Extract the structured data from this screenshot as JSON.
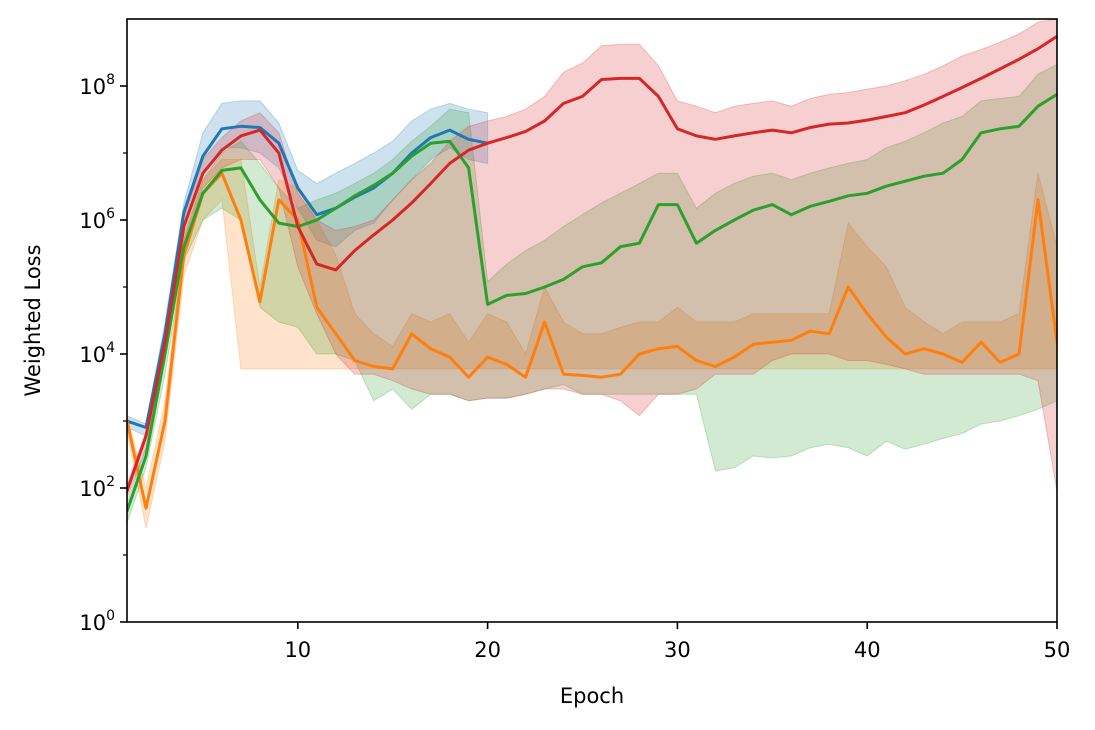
{
  "chart_data": {
    "type": "line",
    "xlabel": "Epoch",
    "ylabel": "Weighted Loss",
    "xlim": [
      1,
      50
    ],
    "ylim": [
      1,
      1000000000
    ],
    "yscale": "log",
    "grid": false,
    "x_ticks": [
      10,
      20,
      30,
      40,
      50
    ],
    "y_ticks": [
      {
        "value": 1,
        "base": "10",
        "exp": "0"
      },
      {
        "value": 100,
        "base": "10",
        "exp": "2"
      },
      {
        "value": 10000,
        "base": "10",
        "exp": "4"
      },
      {
        "value": 1000000,
        "base": "10",
        "exp": "6"
      },
      {
        "value": 100000000,
        "base": "10",
        "exp": "8"
      }
    ],
    "x": [
      1,
      2,
      3,
      4,
      5,
      6,
      7,
      8,
      9,
      10,
      11,
      12,
      13,
      14,
      15,
      16,
      17,
      18,
      19,
      20,
      21,
      22,
      23,
      24,
      25,
      26,
      27,
      28,
      29,
      30,
      31,
      32,
      33,
      34,
      35,
      36,
      37,
      38,
      39,
      40,
      41,
      42,
      43,
      44,
      45,
      46,
      47,
      48,
      49,
      50
    ],
    "series": [
      {
        "color": "#1f77b4",
        "values": [
          1000,
          800,
          20000,
          1300000,
          9000000,
          23000000,
          25000000,
          24000000,
          14000000,
          3000000,
          1200000,
          1500000,
          2200000,
          3000000,
          5000000,
          10000000,
          17000000,
          22000000,
          16000000,
          14000000,
          null,
          null,
          null,
          null,
          null,
          null,
          null,
          null,
          null,
          null,
          null,
          null,
          null,
          null,
          null,
          null,
          null,
          null,
          null,
          null,
          null,
          null,
          null,
          null,
          null,
          null,
          null,
          null,
          null,
          null
        ],
        "upper": [
          1200,
          900,
          30000,
          1800000,
          20000000,
          55000000,
          60000000,
          60000000,
          28000000,
          5500000,
          3500000,
          5000000,
          7000000,
          10000000,
          15000000,
          30000000,
          45000000,
          55000000,
          45000000,
          40000000,
          null,
          null,
          null,
          null,
          null,
          null,
          null,
          null,
          null,
          null,
          null,
          null,
          null,
          null,
          null,
          null,
          null,
          null,
          null,
          null,
          null,
          null,
          null,
          null,
          null,
          null,
          null,
          null,
          null,
          null
        ],
        "lower": [
          800,
          600,
          10000,
          900000,
          5000000,
          12000000,
          12000000,
          10000000,
          6000000,
          1500000,
          500000,
          400000,
          700000,
          900000,
          2000000,
          4000000,
          8000000,
          12000000,
          8000000,
          7000000,
          null,
          null,
          null,
          null,
          null,
          null,
          null,
          null,
          null,
          null,
          null,
          null,
          null,
          null,
          null,
          null,
          null,
          null,
          null,
          null,
          null,
          null,
          null,
          null,
          null,
          null,
          null,
          null,
          null,
          null
        ]
      },
      {
        "color": "#ff7f0e",
        "values": [
          1000,
          50,
          1000,
          300000,
          2500000,
          5000000,
          1000000,
          60000,
          2000000,
          1000000,
          50000,
          20000,
          8000,
          6500,
          6000,
          20000,
          12000,
          9000,
          4500,
          9000,
          7000,
          4500,
          30000,
          5000,
          4800,
          4500,
          5000,
          10000,
          12000,
          13000,
          8000,
          6500,
          9000,
          14000,
          15000,
          16000,
          22000,
          20000,
          100000,
          40000,
          18000,
          10000,
          12000,
          10000,
          7500,
          15000,
          7500,
          10000,
          2000000,
          15000
        ],
        "upper": [
          1200,
          100,
          2000,
          500000,
          4000000,
          8000000,
          8000000,
          100000,
          4000000,
          3000000,
          1000000,
          300000,
          40000,
          20000,
          13000,
          40000,
          30000,
          40000,
          15000,
          40000,
          30000,
          10000,
          100000,
          30000,
          20000,
          20000,
          25000,
          30000,
          30000,
          50000,
          30000,
          30000,
          30000,
          40000,
          40000,
          40000,
          40000,
          40000,
          900000,
          400000,
          200000,
          50000,
          30000,
          20000,
          30000,
          30000,
          30000,
          40000,
          5000000,
          400000
        ],
        "lower": [
          700,
          25,
          500,
          150000,
          1000000,
          2000000,
          6000,
          6000,
          6000,
          6000,
          6000,
          6000,
          6000,
          6000,
          6000,
          6000,
          6000,
          6000,
          6000,
          6000,
          6000,
          6000,
          6000,
          6000,
          6000,
          6000,
          6000,
          6000,
          6000,
          6000,
          6000,
          6000,
          6000,
          6000,
          6000,
          6000,
          6000,
          6000,
          6000,
          6000,
          6000,
          6000,
          6000,
          6000,
          6000,
          6000,
          6000,
          6000,
          6000,
          6000
        ]
      },
      {
        "color": "#2ca02c",
        "values": [
          45,
          300,
          10000,
          400000,
          2500000,
          5500000,
          6000000,
          2000000,
          900000,
          800000,
          1000000,
          1500000,
          2300000,
          3300000,
          5000000,
          9000000,
          14000000,
          15000000,
          6000000,
          55000,
          75000,
          80000,
          100000,
          130000,
          200000,
          230000,
          400000,
          450000,
          1700000,
          1700000,
          450000,
          700000,
          1000000,
          1400000,
          1700000,
          1200000,
          1600000,
          1900000,
          2300000,
          2500000,
          3200000,
          3800000,
          4500000,
          5000000,
          8000000,
          20000000,
          23000000,
          25000000,
          50000000,
          75000000
        ],
        "upper": [
          60,
          400,
          15000,
          600000,
          4000000,
          10000000,
          15000000,
          7000000,
          3000000,
          1500000,
          2000000,
          2500000,
          3500000,
          5000000,
          8000000,
          15000000,
          25000000,
          45000000,
          40000000,
          120000,
          220000,
          350000,
          500000,
          800000,
          1200000,
          1800000,
          2500000,
          3500000,
          5000000,
          5000000,
          1500000,
          2500000,
          3500000,
          4500000,
          5000000,
          4000000,
          5000000,
          6000000,
          7000000,
          8000000,
          12000000,
          15000000,
          20000000,
          28000000,
          35000000,
          60000000,
          65000000,
          70000000,
          150000000,
          210000000
        ],
        "lower": [
          30,
          200,
          5000,
          250000,
          1000000,
          1500000,
          1000000,
          50000,
          30000,
          25000,
          10000,
          10000,
          8000,
          2000,
          3000,
          1500,
          2500,
          2500,
          2000,
          2200,
          2200,
          2500,
          3000,
          3500,
          2500,
          2500,
          2500,
          2500,
          2500,
          2500,
          2500,
          180,
          200,
          300,
          280,
          300,
          400,
          450,
          400,
          300,
          500,
          380,
          450,
          550,
          650,
          900,
          1000,
          1200,
          1500,
          2000
        ]
      },
      {
        "color": "#d62728",
        "values": [
          90,
          600,
          15000,
          800000,
          5000000,
          11000000,
          18000000,
          22000000,
          10000000,
          800000,
          220000,
          180000,
          350000,
          600000,
          1000000,
          1800000,
          3500000,
          7000000,
          11000000,
          14000000,
          17000000,
          21000000,
          30000000,
          55000000,
          70000000,
          125000000,
          130000000,
          130000000,
          70000000,
          23000000,
          18000000,
          16000000,
          18000000,
          20000000,
          22000000,
          20000000,
          24000000,
          27000000,
          28000000,
          31000000,
          35000000,
          40000000,
          52000000,
          70000000,
          95000000,
          130000000,
          180000000,
          250000000,
          360000000,
          550000000
        ],
        "upper": [
          110,
          700,
          20000,
          1100000,
          8000000,
          17000000,
          30000000,
          40000000,
          20000000,
          2500000,
          1000000,
          700000,
          800000,
          1000000,
          2000000,
          4000000,
          7000000,
          15000000,
          25000000,
          30000000,
          35000000,
          45000000,
          70000000,
          160000000,
          220000000,
          400000000,
          420000000,
          420000000,
          200000000,
          60000000,
          50000000,
          40000000,
          50000000,
          55000000,
          60000000,
          50000000,
          65000000,
          75000000,
          80000000,
          90000000,
          100000000,
          120000000,
          150000000,
          200000000,
          280000000,
          350000000,
          450000000,
          600000000,
          900000000,
          1000000000
        ],
        "lower": [
          70,
          400,
          8000,
          500000,
          3000000,
          6000000,
          8000000,
          8000000,
          3000000,
          200000,
          40000,
          10000,
          5000,
          5000,
          4000,
          3000,
          2500,
          2500,
          2000,
          2200,
          2200,
          2500,
          3000,
          3000,
          2500,
          2500,
          2000,
          1200,
          2500,
          2500,
          3000,
          5000,
          5000,
          5000,
          8000,
          10000,
          10000,
          10000,
          8000,
          8000,
          7000,
          6000,
          5000,
          5000,
          5000,
          5000,
          5000,
          5000,
          4000,
          90
        ]
      }
    ]
  }
}
